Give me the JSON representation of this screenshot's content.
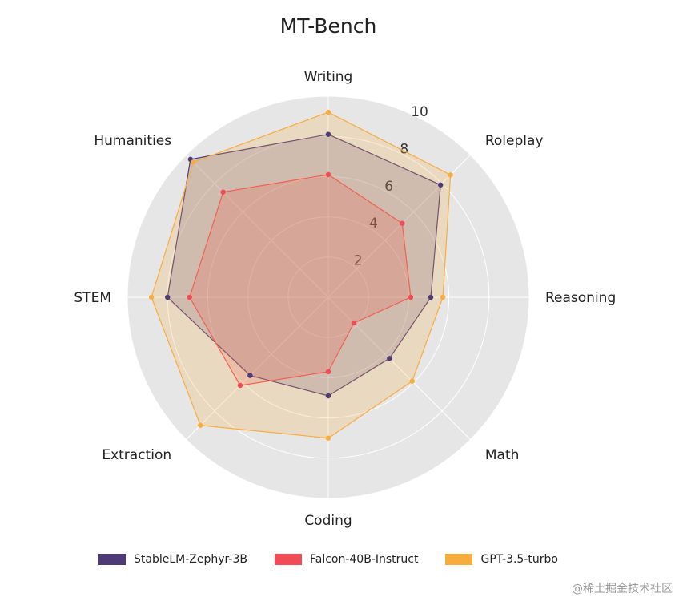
{
  "chart_data": {
    "type": "radar",
    "title": "MT-Bench",
    "categories": [
      "Writing",
      "Roleplay",
      "Reasoning",
      "Math",
      "Coding",
      "Extraction",
      "STEM",
      "Humanities"
    ],
    "radial_ticks": [
      "2",
      "4",
      "6",
      "8",
      "10"
    ],
    "rlim": [
      0,
      10
    ],
    "grid": true,
    "legend_position": "bottom",
    "series": [
      {
        "name": "StableLM-Zephyr-3B",
        "color": "#4f3a78",
        "values": [
          8.1,
          7.9,
          5.1,
          4.3,
          4.9,
          5.5,
          8.0,
          9.7
        ]
      },
      {
        "name": "Falcon-40B-Instruct",
        "color": "#f04b57",
        "values": [
          6.1,
          5.2,
          4.1,
          1.8,
          3.7,
          6.2,
          6.9,
          7.4
        ]
      },
      {
        "name": "GPT-3.5-turbo",
        "color": "#f7ad3e",
        "values": [
          9.2,
          8.6,
          5.7,
          5.9,
          7.0,
          9.0,
          8.8,
          9.5
        ]
      }
    ]
  },
  "watermark": "@稀土掘金技术社区"
}
